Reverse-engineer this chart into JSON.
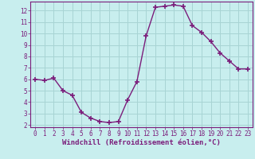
{
  "x": [
    0,
    1,
    2,
    3,
    4,
    5,
    6,
    7,
    8,
    9,
    10,
    11,
    12,
    13,
    14,
    15,
    16,
    17,
    18,
    19,
    20,
    21,
    22,
    23
  ],
  "y": [
    6.0,
    5.9,
    6.1,
    5.0,
    4.6,
    3.1,
    2.6,
    2.3,
    2.2,
    2.3,
    4.2,
    5.8,
    9.8,
    12.3,
    12.4,
    12.5,
    12.4,
    10.7,
    10.1,
    9.3,
    8.3,
    7.6,
    6.9,
    6.9
  ],
  "line_color": "#7B1D7B",
  "marker": "+",
  "marker_size": 4,
  "bg_color": "#c8eeee",
  "grid_color": "#a8d4d4",
  "tick_color": "#7B1D7B",
  "label_color": "#7B1D7B",
  "xlabel": "Windchill (Refroidissement éolien,°C)",
  "ylim": [
    1.8,
    12.8
  ],
  "xlim": [
    -0.5,
    23.5
  ],
  "yticks": [
    2,
    3,
    4,
    5,
    6,
    7,
    8,
    9,
    10,
    11,
    12
  ],
  "xticks": [
    0,
    1,
    2,
    3,
    4,
    5,
    6,
    7,
    8,
    9,
    10,
    11,
    12,
    13,
    14,
    15,
    16,
    17,
    18,
    19,
    20,
    21,
    22,
    23
  ],
  "xlabel_fontsize": 6.5,
  "tick_fontsize": 5.5,
  "linewidth": 1.0,
  "spine_color": "#7B1D7B"
}
